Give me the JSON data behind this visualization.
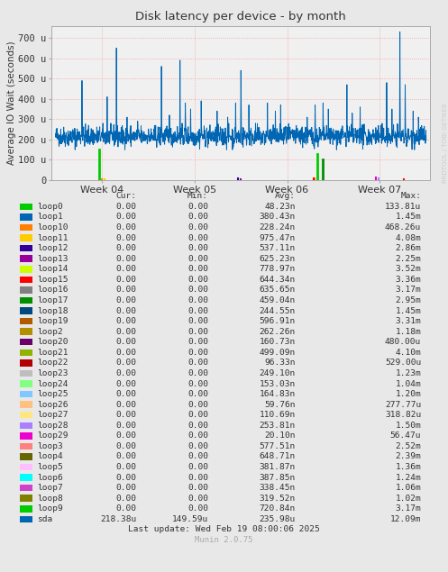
{
  "title": "Disk latency per device - by month",
  "ylabel": "Average IO Wait (seconds)",
  "bg_color": "#e8e8e8",
  "plot_bg_color": "#f0f0f0",
  "ytick_labels": [
    "0",
    "100 u",
    "200 u",
    "300 u",
    "400 u",
    "500 u",
    "600 u",
    "700 u"
  ],
  "ytick_values": [
    0,
    100,
    200,
    300,
    400,
    500,
    600,
    700
  ],
  "ylim": [
    0,
    760
  ],
  "xtick_labels": [
    "Week 04",
    "Week 05",
    "Week 06",
    "Week 07"
  ],
  "rrdtool_text": "RRDTOOL / TOBI OETIKER",
  "legend_entries": [
    {
      "label": "loop0",
      "color": "#00cc00"
    },
    {
      "label": "loop1",
      "color": "#0066b3"
    },
    {
      "label": "loop10",
      "color": "#ff8000"
    },
    {
      "label": "loop11",
      "color": "#ffcc00"
    },
    {
      "label": "loop12",
      "color": "#330099"
    },
    {
      "label": "loop13",
      "color": "#990099"
    },
    {
      "label": "loop14",
      "color": "#ccff00"
    },
    {
      "label": "loop15",
      "color": "#ff0000"
    },
    {
      "label": "loop16",
      "color": "#808080"
    },
    {
      "label": "loop17",
      "color": "#008f00"
    },
    {
      "label": "loop18",
      "color": "#00487d"
    },
    {
      "label": "loop19",
      "color": "#b35a00"
    },
    {
      "label": "loop2",
      "color": "#b38f00"
    },
    {
      "label": "loop20",
      "color": "#6b006b"
    },
    {
      "label": "loop21",
      "color": "#8fb300"
    },
    {
      "label": "loop22",
      "color": "#b30000"
    },
    {
      "label": "loop23",
      "color": "#bebebe"
    },
    {
      "label": "loop24",
      "color": "#80ff80"
    },
    {
      "label": "loop25",
      "color": "#80c9ff"
    },
    {
      "label": "loop26",
      "color": "#ffc080"
    },
    {
      "label": "loop27",
      "color": "#ffe680"
    },
    {
      "label": "loop28",
      "color": "#aa80ff"
    },
    {
      "label": "loop29",
      "color": "#ee00cc"
    },
    {
      "label": "loop3",
      "color": "#ff8080"
    },
    {
      "label": "loop4",
      "color": "#666600"
    },
    {
      "label": "loop5",
      "color": "#ffbfff"
    },
    {
      "label": "loop6",
      "color": "#00ffff"
    },
    {
      "label": "loop7",
      "color": "#cc44cc"
    },
    {
      "label": "loop8",
      "color": "#808000"
    },
    {
      "label": "loop9",
      "color": "#00cc00"
    },
    {
      "label": "sda",
      "color": "#0066b3"
    }
  ],
  "legend_data": [
    [
      "0.00",
      "0.00",
      "48.23n",
      "133.81u"
    ],
    [
      "0.00",
      "0.00",
      "380.43n",
      "1.45m"
    ],
    [
      "0.00",
      "0.00",
      "228.24n",
      "468.26u"
    ],
    [
      "0.00",
      "0.00",
      "975.47n",
      "4.08m"
    ],
    [
      "0.00",
      "0.00",
      "537.11n",
      "2.86m"
    ],
    [
      "0.00",
      "0.00",
      "625.23n",
      "2.25m"
    ],
    [
      "0.00",
      "0.00",
      "778.97n",
      "3.52m"
    ],
    [
      "0.00",
      "0.00",
      "644.34n",
      "3.36m"
    ],
    [
      "0.00",
      "0.00",
      "635.65n",
      "3.17m"
    ],
    [
      "0.00",
      "0.00",
      "459.04n",
      "2.95m"
    ],
    [
      "0.00",
      "0.00",
      "244.55n",
      "1.45m"
    ],
    [
      "0.00",
      "0.00",
      "596.91n",
      "3.31m"
    ],
    [
      "0.00",
      "0.00",
      "262.26n",
      "1.18m"
    ],
    [
      "0.00",
      "0.00",
      "160.73n",
      "480.00u"
    ],
    [
      "0.00",
      "0.00",
      "499.09n",
      "4.10m"
    ],
    [
      "0.00",
      "0.00",
      "96.33n",
      "529.00u"
    ],
    [
      "0.00",
      "0.00",
      "249.10n",
      "1.23m"
    ],
    [
      "0.00",
      "0.00",
      "153.03n",
      "1.04m"
    ],
    [
      "0.00",
      "0.00",
      "164.83n",
      "1.20m"
    ],
    [
      "0.00",
      "0.00",
      "59.76n",
      "277.77u"
    ],
    [
      "0.00",
      "0.00",
      "110.69n",
      "318.82u"
    ],
    [
      "0.00",
      "0.00",
      "253.81n",
      "1.50m"
    ],
    [
      "0.00",
      "0.00",
      "20.10n",
      "56.47u"
    ],
    [
      "0.00",
      "0.00",
      "577.51n",
      "2.52m"
    ],
    [
      "0.00",
      "0.00",
      "648.71n",
      "2.39m"
    ],
    [
      "0.00",
      "0.00",
      "381.87n",
      "1.36m"
    ],
    [
      "0.00",
      "0.00",
      "387.85n",
      "1.24m"
    ],
    [
      "0.00",
      "0.00",
      "338.45n",
      "1.06m"
    ],
    [
      "0.00",
      "0.00",
      "319.52n",
      "1.02m"
    ],
    [
      "0.00",
      "0.00",
      "720.84n",
      "3.17m"
    ],
    [
      "218.38u",
      "149.59u",
      "235.98u",
      "12.09m"
    ]
  ],
  "last_update": "Last update: Wed Feb 19 08:00:06 2025",
  "munin_version": "Munin 2.0.75"
}
